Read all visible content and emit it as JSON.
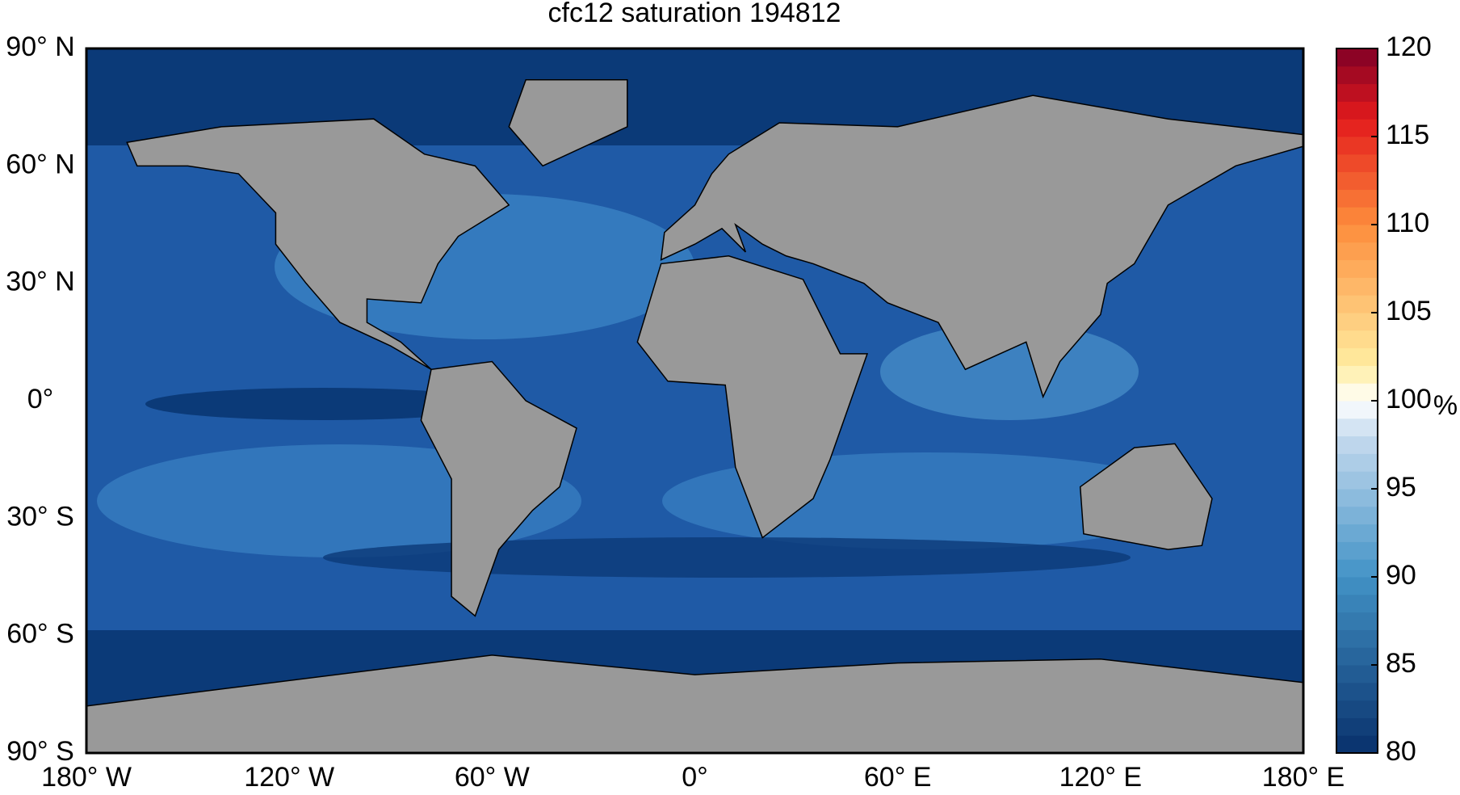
{
  "title": "cfc12 saturation 194812",
  "lat_ticks": [
    "90° N",
    "60° N",
    "30° N",
    "0°",
    "30° S",
    "60° S",
    "90° S"
  ],
  "lon_ticks": [
    "180° W",
    "120° W",
    "60° W",
    "0°",
    "60° E",
    "120° E",
    "180° E"
  ],
  "colorbar": {
    "range": [
      80,
      120
    ],
    "ticks": [
      80,
      85,
      90,
      95,
      100,
      105,
      110,
      115,
      120
    ],
    "unit": "%"
  }
}
